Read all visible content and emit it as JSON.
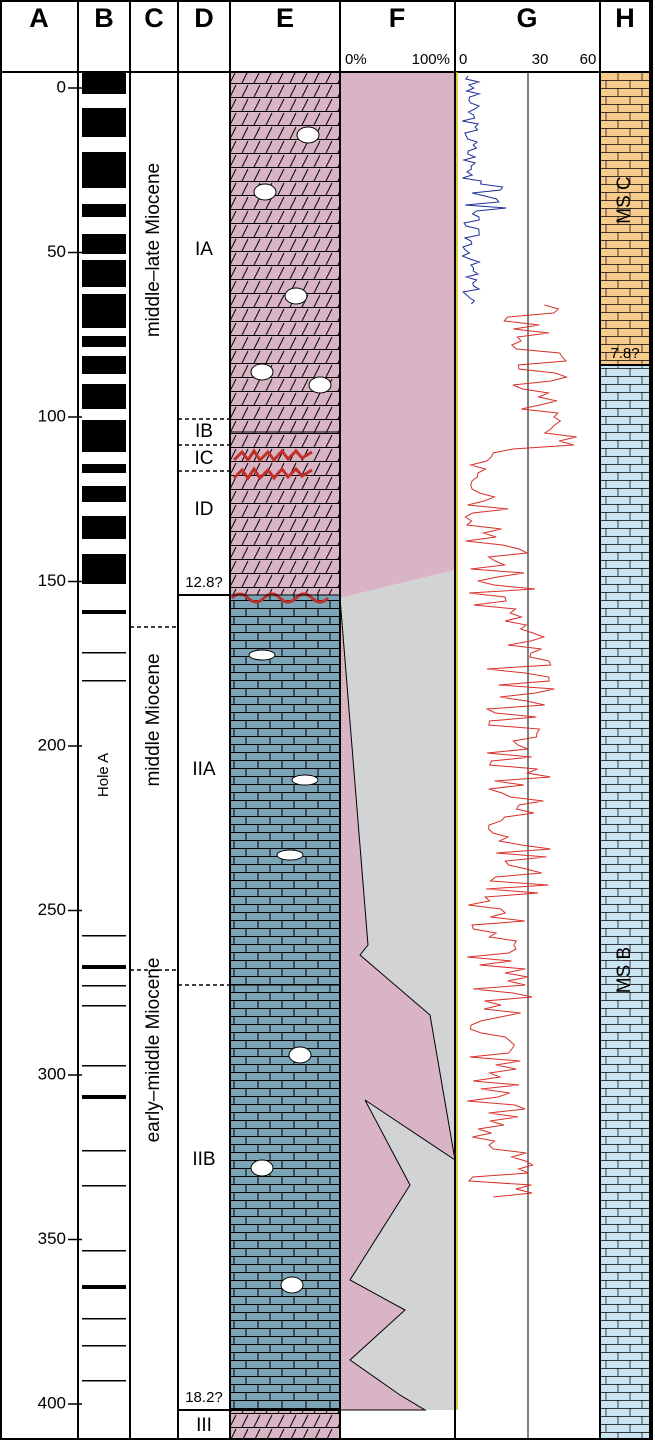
{
  "header": {
    "columns": [
      "A",
      "B",
      "C",
      "D",
      "E",
      "F",
      "G",
      "H"
    ]
  },
  "depth_axis": {
    "ticks": [
      0,
      50,
      100,
      150,
      200,
      250,
      300,
      350,
      400
    ]
  },
  "column_b": {
    "label": "Hole A"
  },
  "column_c": {
    "ages": [
      "middle–late Miocene",
      "middle Miocene",
      "early–middle Miocene"
    ]
  },
  "column_d": {
    "units": [
      "IA",
      "IB",
      "IC",
      "ID",
      "IIA",
      "IIB",
      "III"
    ],
    "boundary_ages": [
      "12.8?",
      "18.2?"
    ]
  },
  "column_f": {
    "scale_labels": [
      "0%",
      "100%"
    ]
  },
  "column_g": {
    "scale_labels": [
      0,
      30,
      60
    ]
  },
  "column_h": {
    "units": [
      "MS C",
      "MS B"
    ],
    "boundary_age": "7.8?"
  }
}
